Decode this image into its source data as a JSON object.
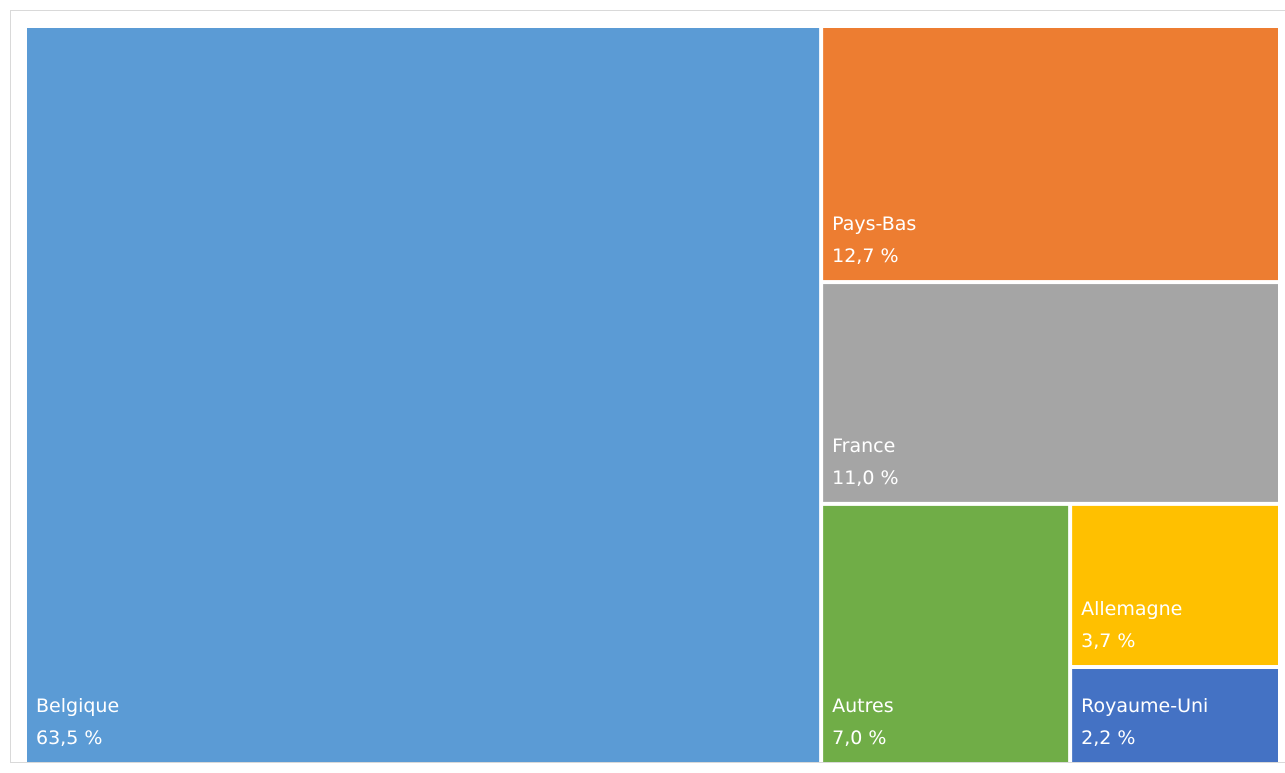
{
  "chart_data": {
    "type": "treemap",
    "categories": [
      "Belgique",
      "Pays-Bas",
      "France",
      "Autres",
      "Allemagne",
      "Royaume-Uni"
    ],
    "values": [
      63.5,
      12.7,
      11.0,
      7.0,
      3.7,
      2.2
    ],
    "value_labels": [
      "63,5 %",
      "12,7 %",
      "11,0 %",
      "7,0 %",
      "3,7 %",
      "2,2 %"
    ],
    "colors": [
      "#5b9bd5",
      "#ed7d31",
      "#a5a5a5",
      "#70ad47",
      "#ffc000",
      "#4472c4"
    ]
  }
}
